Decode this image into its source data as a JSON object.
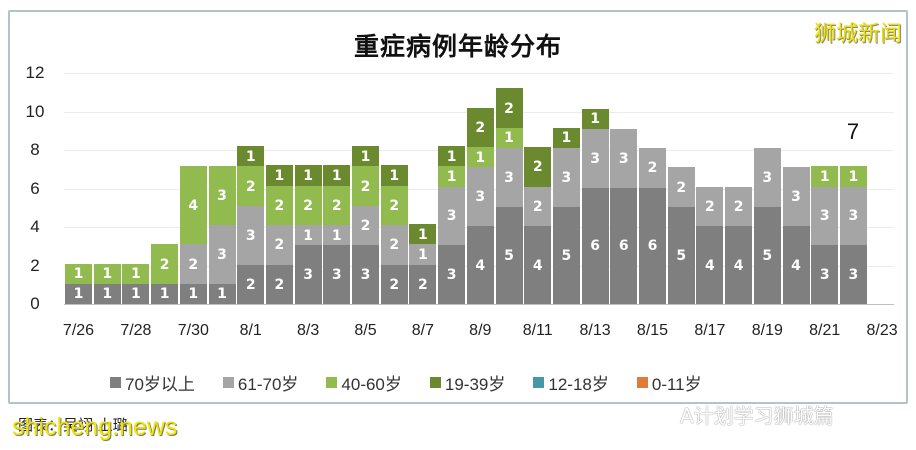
{
  "header": {
    "title": "重症病例年龄分布",
    "brand": "狮城新闻"
  },
  "caption": "图表：吴翊·上璐",
  "watermarks": {
    "site": "shicheng.news",
    "wechat": "A计划学习狮城篇"
  },
  "colors": {
    "s70plus": "#7f7f7f",
    "s61_70": "#a5a5a5",
    "s40_60": "#92bb4f",
    "s19_39": "#6b8a30",
    "s12_18": "#4797a8",
    "s0_11": "#e07b39"
  },
  "chart_data": {
    "type": "bar",
    "stacked": true,
    "title": "重症病例年龄分布",
    "xlabel": "",
    "ylabel": "",
    "ylim": [
      0,
      12
    ],
    "yticks": [
      0,
      2,
      4,
      6,
      8,
      10,
      12
    ],
    "grid": true,
    "legend_position": "bottom",
    "categories": [
      "7/26",
      "7/27",
      "7/28",
      "7/29",
      "7/30",
      "7/31",
      "8/1",
      "8/2",
      "8/3",
      "8/4",
      "8/5",
      "8/6",
      "8/7",
      "8/8",
      "8/9",
      "8/10",
      "8/11",
      "8/12",
      "8/13",
      "8/14",
      "8/15",
      "8/16",
      "8/17",
      "8/18",
      "8/19",
      "8/20",
      "8/21",
      "8/22",
      "8/23"
    ],
    "tick_labels": [
      "7/26",
      "7/28",
      "7/30",
      "8/1",
      "8/3",
      "8/5",
      "8/7",
      "8/9",
      "8/11",
      "8/13",
      "8/15",
      "8/17",
      "8/19",
      "8/21",
      "8/23"
    ],
    "series": [
      {
        "name": "70岁以上",
        "values": [
          1,
          1,
          1,
          1,
          1,
          1,
          2,
          2,
          3,
          3,
          3,
          2,
          2,
          3,
          4,
          5,
          4,
          5,
          6,
          6,
          6,
          5,
          4,
          4,
          5,
          4,
          3,
          3,
          0
        ]
      },
      {
        "name": "61-70岁",
        "values": [
          0,
          0,
          0,
          0,
          2,
          3,
          3,
          2,
          1,
          1,
          2,
          2,
          1,
          3,
          3,
          3,
          2,
          3,
          3,
          3,
          2,
          2,
          2,
          2,
          3,
          3,
          3,
          3,
          0
        ]
      },
      {
        "name": "40-60岁",
        "values": [
          1,
          1,
          1,
          2,
          4,
          3,
          2,
          2,
          2,
          2,
          2,
          2,
          0,
          1,
          1,
          1,
          0,
          0,
          0,
          0,
          0,
          0,
          0,
          0,
          0,
          0,
          1,
          1,
          0
        ]
      },
      {
        "name": "19-39岁",
        "values": [
          0,
          0,
          0,
          0,
          0,
          0,
          1,
          1,
          1,
          1,
          1,
          1,
          1,
          1,
          2,
          2,
          2,
          1,
          1,
          0,
          0,
          0,
          0,
          0,
          0,
          0,
          0,
          0,
          0
        ]
      },
      {
        "name": "12-18岁",
        "values": [
          0,
          0,
          0,
          0,
          0,
          0,
          0,
          0,
          0,
          0,
          0,
          0,
          0,
          0,
          0,
          0,
          0,
          0,
          0,
          0,
          0,
          0,
          0,
          0,
          0,
          0,
          0,
          0,
          0
        ]
      },
      {
        "name": "0-11岁",
        "values": [
          0,
          0,
          0,
          0,
          0,
          0,
          0,
          0,
          0,
          0,
          0,
          0,
          0,
          0,
          0,
          0,
          0,
          0,
          0,
          0,
          0,
          0,
          0,
          0,
          0,
          0,
          0,
          0,
          0
        ]
      }
    ],
    "annotations": [
      {
        "category": "8/22",
        "text": "7"
      }
    ]
  }
}
